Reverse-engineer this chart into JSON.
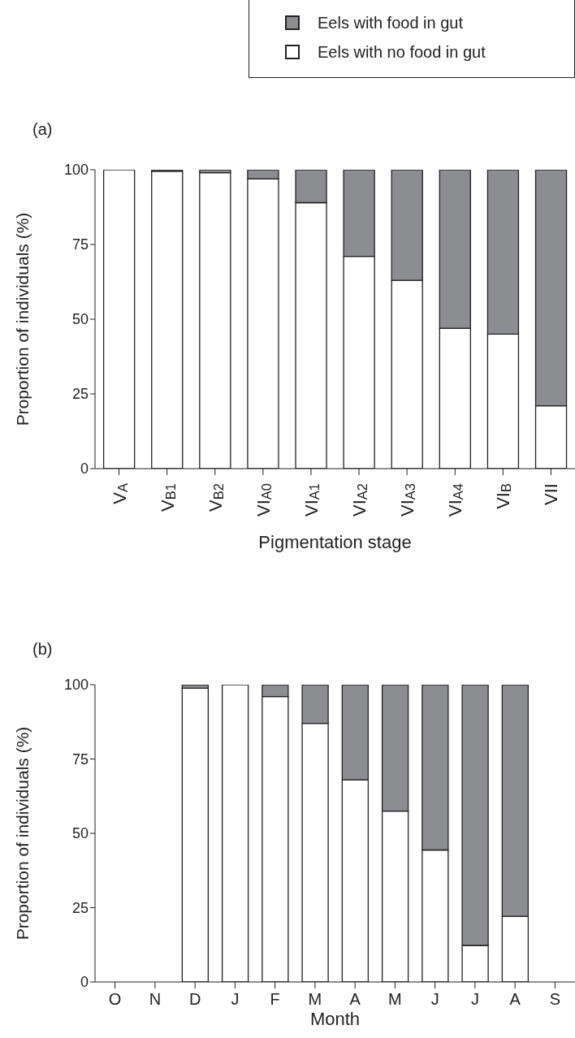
{
  "chart_data": [
    {
      "type": "bar",
      "title": "(a)",
      "xlabel": "Pigmentation stage",
      "ylabel": "Proportion of individuals (%)",
      "categories": [
        "V$_{A}$",
        "V$_{B1}$",
        "V$_{B2}$",
        "VI$_{A0}$",
        "VI$_{A1}$",
        "VI$_{A2}$",
        "VI$_{A3}$",
        "VI$_{A4}$",
        "VI$_{B}$",
        "VII"
      ],
      "series": [
        {
          "name": "Eels with no food in gut",
          "color": "#ffffff",
          "values": [
            100,
            99.5,
            99,
            97,
            89,
            71,
            63,
            47,
            45,
            21
          ]
        },
        {
          "name": "Eels with food in gut",
          "color": "#8c8d91",
          "values": [
            0,
            0.5,
            1,
            3,
            11,
            29,
            37,
            53,
            55,
            79
          ]
        }
      ],
      "stacked": true,
      "ylim": [
        0,
        100
      ],
      "yticks": [
        0,
        25,
        50,
        75,
        100
      ],
      "grid": false,
      "legend": "top right"
    },
    {
      "type": "bar",
      "title": "(b)",
      "xlabel": "Month",
      "ylabel": "Proportion of individuals (%)",
      "categories": [
        "O",
        "N",
        "D",
        "J",
        "F",
        "M",
        "A",
        "M",
        "J",
        "J",
        "A",
        "S"
      ],
      "series": [
        {
          "color": "#ffffff",
          "values": [
            null,
            null,
            98.8,
            100,
            96,
            87,
            68,
            57.5,
            44.4,
            12.3,
            22.1,
            null
          ]
        },
        {
          "color": "#8c8d91",
          "values": [
            null,
            null,
            1.2,
            0,
            4,
            13,
            32,
            42.5,
            55.6,
            87.7,
            77.9,
            null
          ]
        }
      ],
      "stacked": true,
      "ylim": [
        0,
        100
      ],
      "yticks": [
        0,
        25,
        50,
        75,
        100
      ],
      "grid": false
    }
  ]
}
